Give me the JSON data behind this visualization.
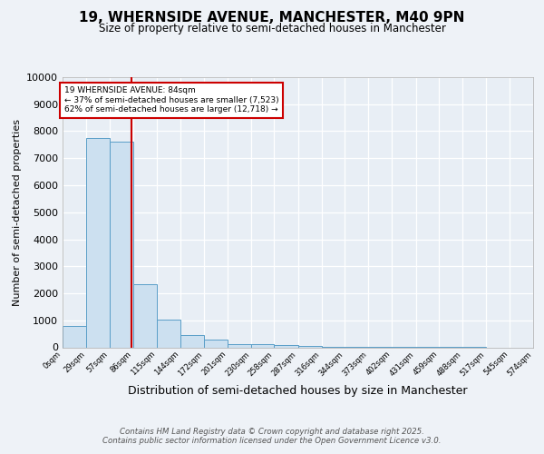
{
  "title1": "19, WHERNSIDE AVENUE, MANCHESTER, M40 9PN",
  "title2": "Size of property relative to semi-detached houses in Manchester",
  "xlabel": "Distribution of semi-detached houses by size in Manchester",
  "ylabel": "Number of semi-detached properties",
  "bin_edges": [
    0,
    29,
    57,
    86,
    115,
    144,
    172,
    201,
    230,
    258,
    287,
    316,
    344,
    373,
    402,
    431,
    459,
    488,
    517,
    545,
    574
  ],
  "bin_labels": [
    "0sqm",
    "29sqm",
    "57sqm",
    "86sqm",
    "115sqm",
    "144sqm",
    "172sqm",
    "201sqm",
    "230sqm",
    "258sqm",
    "287sqm",
    "316sqm",
    "344sqm",
    "373sqm",
    "402sqm",
    "431sqm",
    "459sqm",
    "488sqm",
    "517sqm",
    "545sqm",
    "574sqm"
  ],
  "bar_heights": [
    800,
    7750,
    7600,
    2350,
    1020,
    450,
    290,
    130,
    110,
    80,
    50,
    15,
    10,
    5,
    3,
    2,
    1,
    1,
    0,
    0
  ],
  "bar_color": "#cce0f0",
  "bar_edge_color": "#5a9ec8",
  "property_size": 84,
  "red_line_color": "#cc0000",
  "annotation_text": "19 WHERNSIDE AVENUE: 84sqm\n← 37% of semi-detached houses are smaller (7,523)\n62% of semi-detached houses are larger (12,718) →",
  "annotation_box_color": "#ffffff",
  "annotation_box_edge_color": "#cc0000",
  "ylim": [
    0,
    10000
  ],
  "yticks": [
    0,
    1000,
    2000,
    3000,
    4000,
    5000,
    6000,
    7000,
    8000,
    9000,
    10000
  ],
  "footer1": "Contains HM Land Registry data © Crown copyright and database right 2025.",
  "footer2": "Contains public sector information licensed under the Open Government Licence v3.0.",
  "background_color": "#eef2f7",
  "plot_background_color": "#e8eef5"
}
